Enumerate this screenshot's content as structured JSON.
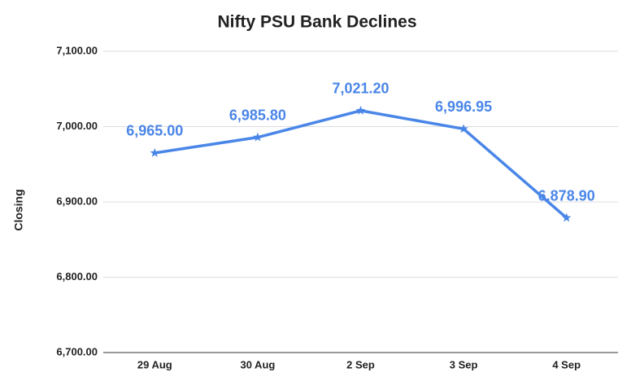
{
  "chart_data": {
    "type": "line",
    "title": "Nifty PSU Bank Declines",
    "y_label": "Closing",
    "categories": [
      "29 Aug",
      "30 Aug",
      "2 Sep",
      "3 Sep",
      "4 Sep"
    ],
    "values": [
      6965.0,
      6985.8,
      7021.2,
      6996.95,
      6878.9
    ],
    "value_labels": [
      "6,965.00",
      "6,985.80",
      "7,021.20",
      "6,996.95",
      "6,878.90"
    ],
    "color": "#4a86e8",
    "marker": "star",
    "ylim": [
      6700,
      7100
    ],
    "yticks": [
      {
        "value": 6700,
        "label": "6,700.00"
      },
      {
        "value": 6800,
        "label": "6,800.00"
      },
      {
        "value": 6900,
        "label": "6,900.00"
      },
      {
        "value": 7000,
        "label": "7,000.00"
      },
      {
        "value": 7100,
        "label": "7,100.00"
      }
    ],
    "grid": true
  }
}
